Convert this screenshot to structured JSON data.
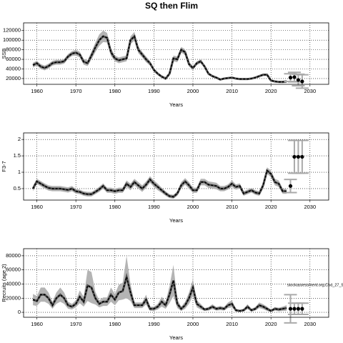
{
  "title": "SQ then Flim",
  "chart_data": [
    {
      "type": "line",
      "ylabel": "SSB",
      "xlabel": "Years",
      "x0": 1959,
      "values": [
        48000,
        52000,
        45000,
        42000,
        46000,
        52000,
        54000,
        54000,
        56000,
        66000,
        72000,
        74000,
        70000,
        55000,
        52000,
        68000,
        85000,
        100000,
        108000,
        105000,
        75000,
        62000,
        58000,
        60000,
        62000,
        100000,
        108000,
        80000,
        70000,
        60000,
        52000,
        38000,
        30000,
        24000,
        20000,
        30000,
        62000,
        60000,
        80000,
        75000,
        50000,
        42000,
        52000,
        56000,
        45000,
        30000,
        25000,
        22000,
        18000,
        20000,
        21000,
        22000,
        20000,
        19000,
        19000,
        19000,
        20000,
        22000,
        25000,
        28000,
        28000,
        16000,
        14000,
        13000,
        13000,
        14000
      ],
      "errors": [
        5000,
        5000,
        5000,
        5000,
        5000,
        5000,
        5000,
        5000,
        5000,
        5000,
        5000,
        6000,
        6000,
        6000,
        6000,
        8000,
        10000,
        12000,
        12000,
        10000,
        8000,
        6000,
        6000,
        6000,
        6000,
        8000,
        9000,
        7000,
        6000,
        6000,
        5000,
        4000,
        3000,
        3000,
        3000,
        4000,
        6000,
        6000,
        6000,
        6000,
        5000,
        4000,
        4000,
        4000,
        3000,
        3000,
        2500,
        2000,
        2000,
        2000,
        2000,
        2000,
        2000,
        2000,
        2000,
        2000,
        2000,
        2000,
        2500,
        2500,
        2500,
        2000,
        2000,
        2000,
        2500,
        3000
      ],
      "proj_x": [
        2025,
        2026,
        2027,
        2028
      ],
      "proj_values": [
        22000,
        23000,
        17000,
        14000
      ],
      "proj_errors": [
        8000,
        10000,
        12000,
        14000
      ],
      "xlim": [
        1956.6,
        2034.8
      ],
      "xticks": [
        1960,
        1970,
        1980,
        1990,
        2000,
        2010,
        2020,
        2030
      ],
      "ylim": [
        8000,
        136000
      ],
      "yticks": [
        20000,
        40000,
        60000,
        80000,
        100000,
        120000
      ],
      "grid": true
    },
    {
      "type": "line",
      "ylabel": "F3-7",
      "xlabel": "Years",
      "x0": 1959,
      "values": [
        0.5,
        0.72,
        0.65,
        0.58,
        0.52,
        0.5,
        0.5,
        0.5,
        0.48,
        0.46,
        0.5,
        0.42,
        0.4,
        0.35,
        0.33,
        0.33,
        0.4,
        0.48,
        0.58,
        0.45,
        0.45,
        0.42,
        0.45,
        0.45,
        0.65,
        0.55,
        0.7,
        0.6,
        0.5,
        0.62,
        0.78,
        0.65,
        0.55,
        0.45,
        0.35,
        0.27,
        0.25,
        0.35,
        0.6,
        0.72,
        0.6,
        0.45,
        0.45,
        0.7,
        0.7,
        0.62,
        0.6,
        0.58,
        0.5,
        0.5,
        0.55,
        0.65,
        0.55,
        0.58,
        0.35,
        0.4,
        0.45,
        0.38,
        0.35,
        0.6,
        1.05,
        0.95,
        0.7,
        0.65,
        0.42,
        0.42
      ],
      "errors": [
        0.08,
        0.08,
        0.08,
        0.08,
        0.08,
        0.08,
        0.08,
        0.08,
        0.08,
        0.08,
        0.08,
        0.07,
        0.07,
        0.07,
        0.07,
        0.07,
        0.07,
        0.08,
        0.08,
        0.08,
        0.08,
        0.08,
        0.08,
        0.08,
        0.1,
        0.1,
        0.1,
        0.1,
        0.1,
        0.1,
        0.1,
        0.1,
        0.1,
        0.08,
        0.07,
        0.06,
        0.06,
        0.07,
        0.1,
        0.1,
        0.1,
        0.08,
        0.08,
        0.1,
        0.1,
        0.1,
        0.1,
        0.1,
        0.08,
        0.08,
        0.08,
        0.1,
        0.08,
        0.08,
        0.07,
        0.07,
        0.07,
        0.07,
        0.07,
        0.1,
        0.1,
        0.1,
        0.1,
        0.1,
        0.08,
        0.08
      ],
      "proj_x": [
        2025,
        2026,
        2027,
        2028
      ],
      "proj_values": [
        0.58,
        1.47,
        1.47,
        1.47
      ],
      "proj_errors": [
        0.2,
        0.5,
        0.5,
        0.5
      ],
      "xlim": [
        1956.6,
        2034.8
      ],
      "xticks": [
        1960,
        1970,
        1980,
        1990,
        2000,
        2010,
        2020,
        2030
      ],
      "ylim": [
        0.15,
        2.2
      ],
      "yticks": [
        0.5,
        1.0,
        1.5,
        2.0
      ],
      "grid": true
    },
    {
      "type": "line",
      "ylabel": "Recruits (age 2)",
      "xlabel": "Years",
      "x0": 1959,
      "annotation": "stockassessment.org,Cod_27_5",
      "values": [
        18000,
        16000,
        25000,
        25000,
        20000,
        10000,
        20000,
        25000,
        20000,
        10000,
        8000,
        12000,
        22000,
        15000,
        38000,
        35000,
        20000,
        12000,
        15000,
        15000,
        25000,
        18000,
        28000,
        30000,
        50000,
        28000,
        10000,
        10000,
        10000,
        18000,
        5000,
        5000,
        8000,
        15000,
        10000,
        25000,
        45000,
        12000,
        5000,
        10000,
        20000,
        35000,
        12000,
        8000,
        4000,
        5000,
        8000,
        5000,
        6000,
        5000,
        10000,
        12000,
        3000,
        2000,
        3000,
        8000,
        3000,
        5000,
        10000,
        8000,
        5000,
        2000,
        5000,
        4000,
        5000,
        6000
      ],
      "errors": [
        8000,
        7000,
        10000,
        10000,
        8000,
        5000,
        8000,
        10000,
        8000,
        5000,
        4000,
        5000,
        9000,
        7000,
        22000,
        22000,
        9000,
        5000,
        6000,
        6000,
        10000,
        8000,
        11000,
        12000,
        30000,
        12000,
        4000,
        4000,
        4000,
        7000,
        3000,
        3000,
        4000,
        7000,
        5000,
        12000,
        22000,
        6000,
        3000,
        5000,
        8000,
        12000,
        5000,
        4000,
        2000,
        2500,
        3500,
        2500,
        3000,
        2500,
        4000,
        5000,
        2000,
        1500,
        2000,
        3500,
        2000,
        2500,
        4000,
        3500,
        3000,
        1500,
        2500,
        2500,
        3000,
        4000
      ],
      "proj_x": [
        2025,
        2026,
        2027,
        2028
      ],
      "proj_values": [
        5000,
        5000,
        5000,
        5000
      ],
      "proj_errors": [
        20000,
        8000,
        8000,
        8000
      ],
      "xlim": [
        1956.6,
        2034.8
      ],
      "xticks": [
        1960,
        1970,
        1980,
        1990,
        2000,
        2010,
        2020,
        2030
      ],
      "ylim": [
        -7000,
        90000
      ],
      "yticks": [
        0,
        20000,
        40000,
        60000,
        80000
      ],
      "grid": true
    }
  ]
}
